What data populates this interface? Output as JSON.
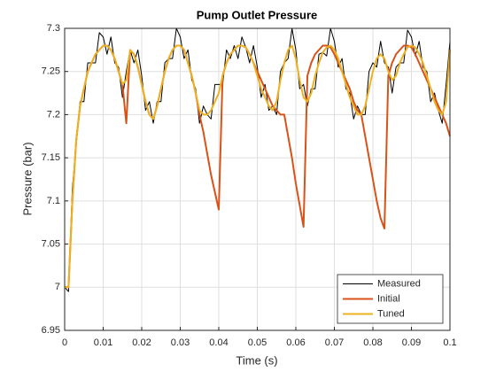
{
  "chart_data": {
    "type": "line",
    "title": "Pump Outlet Pressure",
    "xlabel": "Time (s)",
    "ylabel": "Pressure (bar)",
    "x": [
      0,
      0.001,
      0.002,
      0.003,
      0.004,
      0.005,
      0.006,
      0.007,
      0.008,
      0.009,
      0.01,
      0.011,
      0.012,
      0.013,
      0.014,
      0.015,
      0.016,
      0.017,
      0.018,
      0.019,
      0.02,
      0.021,
      0.022,
      0.023,
      0.024,
      0.025,
      0.026,
      0.027,
      0.028,
      0.029,
      0.03,
      0.031,
      0.032,
      0.033,
      0.034,
      0.035,
      0.036,
      0.037,
      0.038,
      0.039,
      0.04,
      0.041,
      0.042,
      0.043,
      0.044,
      0.045,
      0.046,
      0.047,
      0.048,
      0.049,
      0.05,
      0.051,
      0.052,
      0.053,
      0.054,
      0.055,
      0.056,
      0.057,
      0.058,
      0.059,
      0.06,
      0.061,
      0.062,
      0.063,
      0.064,
      0.065,
      0.066,
      0.067,
      0.068,
      0.069,
      0.07,
      0.071,
      0.072,
      0.073,
      0.074,
      0.075,
      0.076,
      0.077,
      0.078,
      0.079,
      0.08,
      0.081,
      0.082,
      0.083,
      0.084,
      0.085,
      0.086,
      0.087,
      0.088,
      0.089,
      0.09,
      0.091,
      0.092,
      0.093,
      0.094,
      0.095,
      0.096,
      0.097,
      0.098,
      0.099,
      0.1
    ],
    "series": [
      {
        "name": "Measured",
        "color": "#000000",
        "width": 1,
        "values": [
          7.0,
          6.995,
          7.115,
          7.165,
          7.215,
          7.215,
          7.26,
          7.26,
          7.26,
          7.295,
          7.29,
          7.27,
          7.29,
          7.26,
          7.255,
          7.22,
          7.25,
          7.275,
          7.26,
          7.275,
          7.245,
          7.205,
          7.215,
          7.19,
          7.215,
          7.215,
          7.26,
          7.265,
          7.265,
          7.3,
          7.29,
          7.265,
          7.275,
          7.24,
          7.23,
          7.19,
          7.21,
          7.2,
          7.195,
          7.235,
          7.235,
          7.235,
          7.275,
          7.265,
          7.28,
          7.265,
          7.29,
          7.278,
          7.26,
          7.28,
          7.255,
          7.22,
          7.235,
          7.205,
          7.21,
          7.2,
          7.25,
          7.26,
          7.265,
          7.3,
          7.275,
          7.23,
          7.235,
          7.21,
          7.23,
          7.23,
          7.27,
          7.272,
          7.268,
          7.3,
          7.285,
          7.255,
          7.265,
          7.23,
          7.225,
          7.195,
          7.21,
          7.2,
          7.2,
          7.25,
          7.26,
          7.255,
          7.285,
          7.26,
          7.255,
          7.225,
          7.255,
          7.26,
          7.26,
          7.298,
          7.29,
          7.268,
          7.285,
          7.255,
          7.25,
          7.215,
          7.225,
          7.205,
          7.19,
          7.235,
          7.285
        ]
      },
      {
        "name": "Initial",
        "color": "#d95319",
        "width": 2,
        "values": [
          7.0,
          7.0,
          7.1,
          7.17,
          7.21,
          7.23,
          7.25,
          7.26,
          7.27,
          7.275,
          7.28,
          7.28,
          7.275,
          7.265,
          7.25,
          7.235,
          7.19,
          7.275,
          7.27,
          7.255,
          7.235,
          7.215,
          7.2,
          7.195,
          7.21,
          7.23,
          7.25,
          7.265,
          7.275,
          7.28,
          7.28,
          7.275,
          7.26,
          7.245,
          7.225,
          7.2,
          7.18,
          7.155,
          7.13,
          7.11,
          7.09,
          7.245,
          7.26,
          7.27,
          7.275,
          7.28,
          7.28,
          7.278,
          7.27,
          7.26,
          7.25,
          7.24,
          7.23,
          7.22,
          7.21,
          7.205,
          7.2,
          7.2,
          7.175,
          7.15,
          7.12,
          7.095,
          7.07,
          7.245,
          7.26,
          7.27,
          7.275,
          7.28,
          7.28,
          7.278,
          7.27,
          7.26,
          7.25,
          7.24,
          7.23,
          7.215,
          7.205,
          7.2,
          7.175,
          7.15,
          7.125,
          7.1,
          7.08,
          7.068,
          7.245,
          7.26,
          7.27,
          7.275,
          7.28,
          7.28,
          7.278,
          7.27,
          7.26,
          7.25,
          7.24,
          7.23,
          7.22,
          7.21,
          7.2,
          7.19,
          7.175
        ]
      },
      {
        "name": "Tuned",
        "color": "#edb120",
        "width": 2,
        "values": [
          7.0,
          7.0,
          7.1,
          7.17,
          7.21,
          7.23,
          7.25,
          7.26,
          7.27,
          7.275,
          7.28,
          7.28,
          7.275,
          7.265,
          7.25,
          7.235,
          7.24,
          7.275,
          7.27,
          7.255,
          7.235,
          7.215,
          7.2,
          7.195,
          7.21,
          7.23,
          7.25,
          7.265,
          7.275,
          7.28,
          7.28,
          7.275,
          7.26,
          7.245,
          7.225,
          7.205,
          7.2,
          7.2,
          7.205,
          7.215,
          7.225,
          7.245,
          7.26,
          7.27,
          7.275,
          7.28,
          7.28,
          7.278,
          7.27,
          7.26,
          7.245,
          7.23,
          7.22,
          7.21,
          7.205,
          7.215,
          7.24,
          7.26,
          7.275,
          7.28,
          7.265,
          7.24,
          7.22,
          7.215,
          7.225,
          7.245,
          7.26,
          7.272,
          7.278,
          7.28,
          7.275,
          7.265,
          7.25,
          7.235,
          7.22,
          7.21,
          7.2,
          7.2,
          7.21,
          7.23,
          7.25,
          7.265,
          7.27,
          7.265,
          7.25,
          7.24,
          7.245,
          7.26,
          7.27,
          7.278,
          7.28,
          7.278,
          7.27,
          7.26,
          7.245,
          7.23,
          7.215,
          7.205,
          7.2,
          7.215,
          7.275
        ]
      }
    ],
    "xlim": [
      0,
      0.1
    ],
    "xticks": [
      0,
      0.01,
      0.02,
      0.03,
      0.04,
      0.05,
      0.06,
      0.07,
      0.08,
      0.09,
      0.1
    ],
    "ylim": [
      6.95,
      7.3
    ],
    "yticks": [
      6.95,
      7,
      7.05,
      7.1,
      7.15,
      7.2,
      7.25,
      7.3
    ],
    "grid": true,
    "legend": "southeast"
  }
}
